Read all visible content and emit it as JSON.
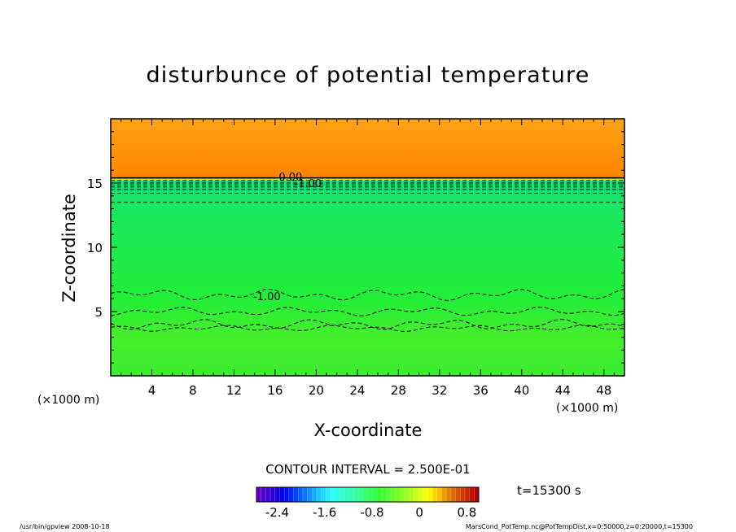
{
  "chart_data": {
    "type": "heatmap",
    "title": "disturbunce of potential temperature",
    "xlabel": "X-coordinate",
    "ylabel": "Z-coordinate",
    "x_unit_left": "(×1000 m)",
    "x_unit_right": "(×1000 m)",
    "xlim": [
      0,
      50
    ],
    "ylim": [
      0,
      20
    ],
    "x_ticks": [
      4,
      8,
      12,
      16,
      20,
      24,
      28,
      32,
      36,
      40,
      44,
      48
    ],
    "y_ticks": [
      5,
      10,
      15
    ],
    "contour_interval_text": "CONTOUR INTERVAL = 2.500E-01",
    "time_text": "t=15300 s",
    "colorbar": {
      "range": [
        -2.75,
        1.0
      ],
      "ticks": [
        "-2.4",
        "-1.6",
        "-0.8",
        "0",
        "0.8"
      ],
      "tick_values": [
        -2.4,
        -1.6,
        -0.8,
        0,
        0.8
      ]
    },
    "contour_labels": [
      {
        "text": "0.00",
        "x": 17.5,
        "z": 15.5
      },
      {
        "text": "-1.00",
        "x": 19.2,
        "z": 15.0
      },
      {
        "text": "-1.00",
        "x": 15.2,
        "z": 6.2
      }
    ],
    "layers": [
      {
        "z_from": 15.4,
        "z_to": 20.0,
        "value": 0.55,
        "color": "#ff8c00"
      },
      {
        "z_from": 15.2,
        "z_to": 15.4,
        "value": 0.05,
        "color": "#f0e020"
      },
      {
        "z_from": 0.0,
        "z_to": 15.2,
        "value": -1.0,
        "color": "#1ee84a"
      }
    ]
  },
  "footer": {
    "left": "/usr/bin/gpview   2008-10-18",
    "right": "MarsCond_PotTemp.nc@PotTempDist,x=0:50000,z=0:20000,t=15300"
  },
  "colors": {
    "upper_orange": "#ff8c00",
    "lower_green": "#1ee84a"
  }
}
